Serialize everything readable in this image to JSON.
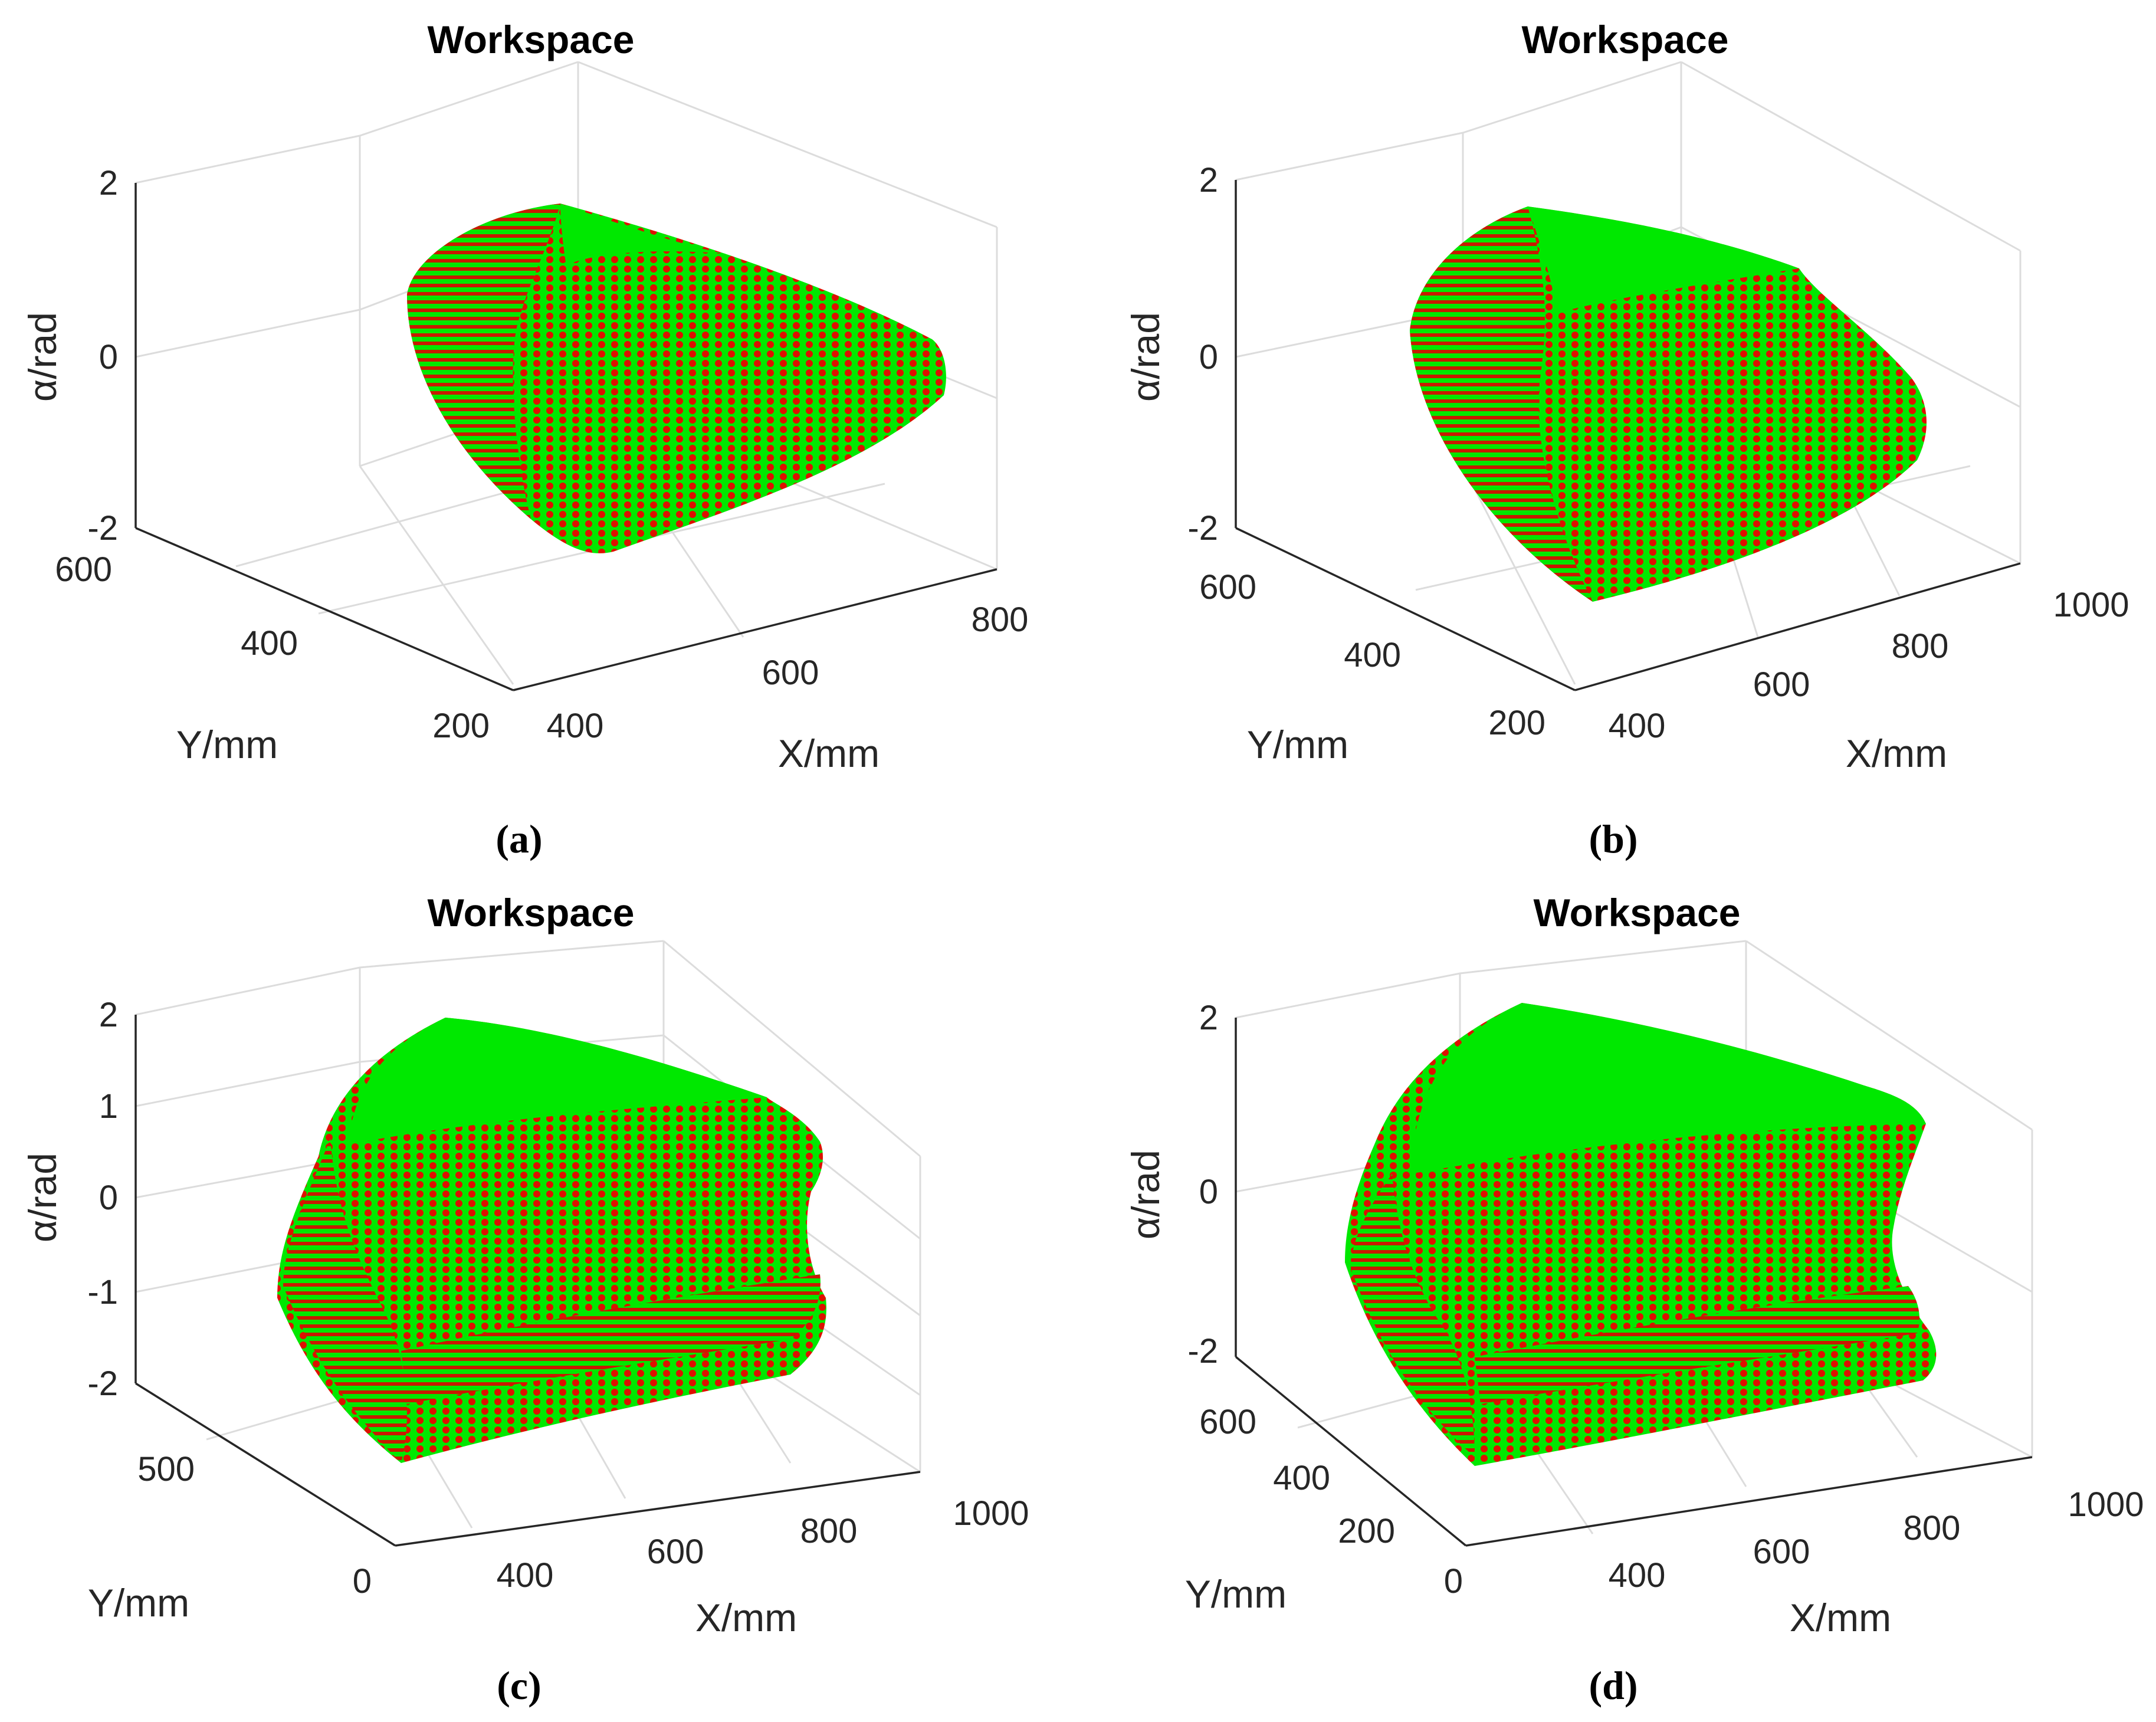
{
  "figure": {
    "captions": [
      "(a)",
      "(b)",
      "(c)",
      "(d)"
    ]
  },
  "colors": {
    "surface_green": "#00ee00",
    "point_red": "#dd1100",
    "axis": "#262626",
    "grid": "#dcdcdc"
  },
  "chart_data": [
    {
      "id": "a",
      "type": "scatter",
      "projection": "3d",
      "title": "Workspace",
      "xlabel": "X/mm",
      "ylabel": "Y/mm",
      "zlabel": "α/rad",
      "xticks": [
        "400",
        "600",
        "800"
      ],
      "yticks": [
        "200",
        "400",
        "600"
      ],
      "zticks": [
        "-2",
        "0",
        "2"
      ],
      "xlim": [
        400,
        900
      ],
      "ylim": [
        200,
        650
      ],
      "zlim": [
        -2,
        2
      ],
      "grid": true,
      "marker_colors": [
        "surface_green",
        "point_red"
      ],
      "caption": "(a)"
    },
    {
      "id": "b",
      "type": "scatter",
      "projection": "3d",
      "title": "Workspace",
      "xlabel": "X/mm",
      "ylabel": "Y/mm",
      "zlabel": "α/rad",
      "xticks": [
        "400",
        "600",
        "800",
        "1000"
      ],
      "yticks": [
        "200",
        "400",
        "600"
      ],
      "zticks": [
        "-2",
        "0",
        "2"
      ],
      "xlim": [
        400,
        1000
      ],
      "ylim": [
        200,
        650
      ],
      "zlim": [
        -2,
        2
      ],
      "grid": true,
      "marker_colors": [
        "surface_green",
        "point_red"
      ],
      "caption": "(b)"
    },
    {
      "id": "c",
      "type": "scatter",
      "projection": "3d",
      "title": "Workspace",
      "xlabel": "X/mm",
      "ylabel": "Y/mm",
      "zlabel": "α/rad",
      "xticks": [
        "400",
        "600",
        "800",
        "1000"
      ],
      "yticks": [
        "0",
        "500"
      ],
      "zticks": [
        "-2",
        "-1",
        "0",
        "1",
        "2"
      ],
      "xlim": [
        300,
        1000
      ],
      "ylim": [
        0,
        800
      ],
      "zlim": [
        -2,
        2
      ],
      "grid": true,
      "marker_colors": [
        "surface_green",
        "point_red"
      ],
      "caption": "(c)"
    },
    {
      "id": "d",
      "type": "scatter",
      "projection": "3d",
      "title": "Workspace",
      "xlabel": "X/mm",
      "ylabel": "Y/mm",
      "zlabel": "α/rad",
      "xticks": [
        "400",
        "600",
        "800",
        "1000"
      ],
      "yticks": [
        "0",
        "200",
        "400",
        "600"
      ],
      "zticks": [
        "-2",
        "0",
        "2"
      ],
      "xlim": [
        300,
        1000
      ],
      "ylim": [
        0,
        700
      ],
      "zlim": [
        -2,
        2
      ],
      "grid": true,
      "marker_colors": [
        "surface_green",
        "point_red"
      ],
      "caption": "(d)"
    }
  ]
}
